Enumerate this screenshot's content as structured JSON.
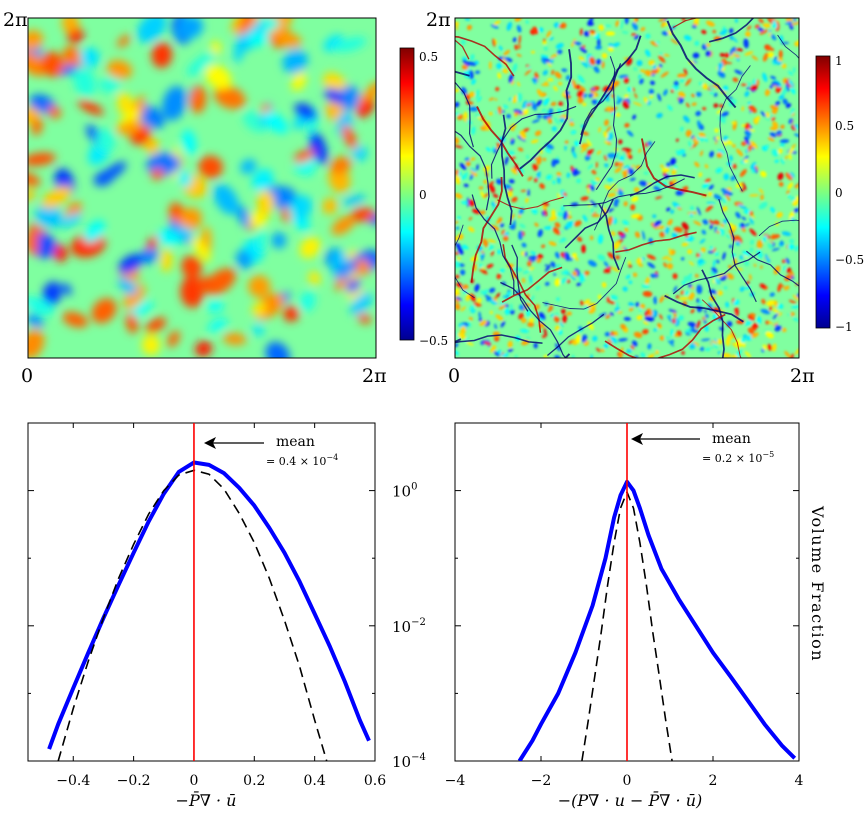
{
  "chart_data": [
    {
      "type": "heatmap",
      "panel": "top-left",
      "field": "smooth",
      "xlim_labels": [
        "0",
        "2π"
      ],
      "ylim_labels": [
        "",
        "2π"
      ],
      "colorbar": {
        "range": [
          -0.5,
          0.5
        ],
        "ticks": [
          "0.5",
          "0",
          "−0.5"
        ],
        "tick_values": [
          0.5,
          0,
          -0.5
        ],
        "colormap": "jet"
      }
    },
    {
      "type": "heatmap",
      "panel": "top-right",
      "field": "filamentary",
      "xlim_labels": [
        "0",
        "2π"
      ],
      "ylim_labels": [
        "",
        "2π"
      ],
      "colorbar": {
        "range": [
          -1,
          1
        ],
        "ticks": [
          "1",
          "0.5",
          "0",
          "−0.5",
          "−1"
        ],
        "tick_values": [
          1,
          0.5,
          0,
          -0.5,
          -1
        ],
        "colormap": "jet"
      }
    },
    {
      "type": "line",
      "panel": "bottom-left",
      "xlabel": "−P̄∇ · ū",
      "xlim": [
        -0.55,
        0.6
      ],
      "xticks": [
        -0.4,
        -0.2,
        0,
        0.2,
        0.4,
        0.6
      ],
      "xtick_labels": [
        "−0.4",
        "−0.2",
        "0",
        "0.2",
        "0.4",
        "0.6"
      ],
      "ylog": true,
      "ylim": [
        0.0001,
        10
      ],
      "annotation": {
        "label": "mean",
        "value": "= 0.4 × 10",
        "exponent": "−4",
        "mean_x": 0
      },
      "series": [
        {
          "style": "solid-blue",
          "x": [
            -0.48,
            -0.45,
            -0.4,
            -0.35,
            -0.3,
            -0.25,
            -0.2,
            -0.15,
            -0.1,
            -0.05,
            0,
            0.05,
            0.1,
            0.15,
            0.2,
            0.25,
            0.3,
            0.35,
            0.4,
            0.45,
            0.5,
            0.55,
            0.58
          ],
          "y": [
            0.00015,
            0.00035,
            0.0012,
            0.004,
            0.013,
            0.04,
            0.12,
            0.35,
            0.9,
            1.9,
            2.6,
            2.4,
            1.8,
            1.1,
            0.6,
            0.28,
            0.12,
            0.045,
            0.015,
            0.005,
            0.0015,
            0.0004,
            0.0002
          ]
        },
        {
          "style": "dashed-black",
          "x": [
            -0.45,
            -0.4,
            -0.35,
            -0.3,
            -0.25,
            -0.2,
            -0.15,
            -0.1,
            -0.05,
            0,
            0.05,
            0.1,
            0.15,
            0.2,
            0.25,
            0.3,
            0.35,
            0.4,
            0.44
          ],
          "y": [
            0.0001,
            0.0006,
            0.003,
            0.013,
            0.05,
            0.16,
            0.45,
            1,
            1.7,
            2,
            1.75,
            1.05,
            0.46,
            0.17,
            0.05,
            0.012,
            0.0025,
            0.0004,
            0.0001
          ]
        }
      ]
    },
    {
      "type": "line",
      "panel": "bottom-right",
      "xlabel": "−(P∇ · u − P̄∇ · ū)",
      "ylabel": "Volume Fraction",
      "xlim": [
        -4,
        4
      ],
      "xticks": [
        -4,
        -2,
        0,
        2,
        4
      ],
      "xtick_labels": [
        "−4",
        "−2",
        "0",
        "2",
        "4"
      ],
      "ylog": true,
      "ylim": [
        0.0001,
        10
      ],
      "ytick_values": [
        1,
        0.01,
        0.0001
      ],
      "ytick_labels": [
        [
          "10",
          "0"
        ],
        [
          "10",
          "−2"
        ],
        [
          "10",
          "−4"
        ]
      ],
      "annotation": {
        "label": "mean",
        "value": "= 0.2 × 10",
        "exponent": "−5",
        "mean_x": 0
      },
      "series": [
        {
          "style": "solid-blue",
          "x": [
            -2.5,
            -2.2,
            -2,
            -1.6,
            -1.2,
            -0.8,
            -0.5,
            -0.3,
            -0.15,
            0,
            0.15,
            0.3,
            0.5,
            0.8,
            1.2,
            1.6,
            2,
            2.4,
            2.8,
            3.2,
            3.6,
            3.9
          ],
          "y": [
            0.0001,
            0.0002,
            0.00035,
            0.001,
            0.004,
            0.02,
            0.1,
            0.4,
            0.85,
            1.35,
            1,
            0.55,
            0.22,
            0.07,
            0.025,
            0.01,
            0.004,
            0.0018,
            0.0008,
            0.00035,
            0.00017,
            0.00011
          ]
        },
        {
          "style": "dashed-black",
          "x": [
            -1.05,
            -0.9,
            -0.75,
            -0.6,
            -0.45,
            -0.3,
            -0.15,
            0,
            0.15,
            0.3,
            0.45,
            0.6,
            0.75,
            0.9,
            1.05
          ],
          "y": [
            0.0001,
            0.0004,
            0.0018,
            0.008,
            0.04,
            0.17,
            0.55,
            0.95,
            0.55,
            0.17,
            0.04,
            0.008,
            0.0018,
            0.0004,
            0.0001
          ]
        }
      ]
    }
  ]
}
